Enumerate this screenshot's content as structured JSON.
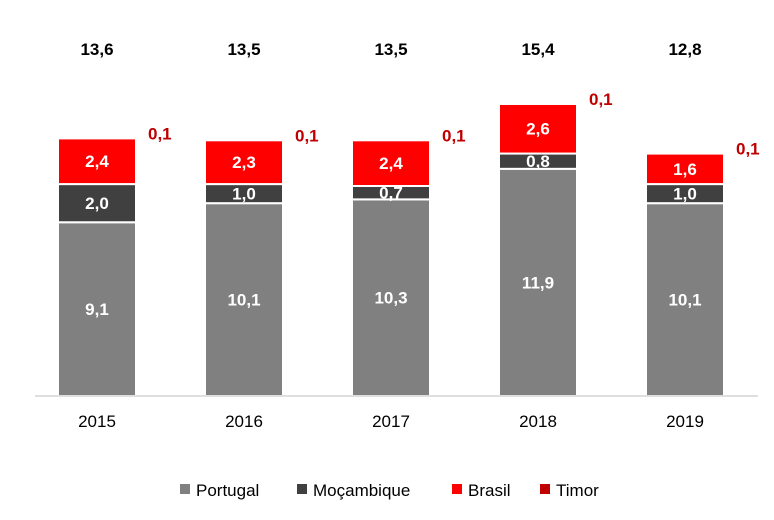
{
  "chart_data": {
    "type": "bar",
    "stacked": true,
    "categories": [
      "2015",
      "2016",
      "2017",
      "2018",
      "2019"
    ],
    "series": [
      {
        "name": "Portugal",
        "color": "#808080",
        "values": [
          9.1,
          10.1,
          10.3,
          11.9,
          10.1
        ],
        "labels": [
          "9,1",
          "10,1",
          "10,3",
          "11,9",
          "10,1"
        ]
      },
      {
        "name": "Moçambique",
        "color": "#404040",
        "values": [
          2.0,
          1.0,
          0.7,
          0.8,
          1.0
        ],
        "labels": [
          "2,0",
          "1,0",
          "0,7",
          "0,8",
          "1,0"
        ]
      },
      {
        "name": "Brasil",
        "color": "#ff0000",
        "values": [
          2.4,
          2.3,
          2.4,
          2.6,
          1.6
        ],
        "labels": [
          "2,4",
          "2,3",
          "2,4",
          "2,6",
          "1,6"
        ]
      },
      {
        "name": "Timor",
        "color": "#c00000",
        "values": [
          0.1,
          0.1,
          0.1,
          0.1,
          0.1
        ],
        "labels": [
          "0,1",
          "0,1",
          "0,1",
          "0,1",
          "0,1"
        ]
      }
    ],
    "totals": [
      "13,6",
      "13,5",
      "13,5",
      "15,4",
      "12,8"
    ],
    "ylim": [
      0,
      15.4
    ],
    "grid": false,
    "legend": "bottom",
    "title": "",
    "xlabel": "",
    "ylabel": ""
  }
}
